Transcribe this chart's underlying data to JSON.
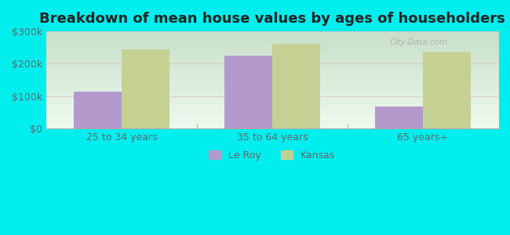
{
  "title": "Breakdown of mean house values by ages of householders",
  "categories": [
    "25 to 34 years",
    "35 to 64 years",
    "65 years+"
  ],
  "leroy_values": [
    113000,
    225000,
    68000
  ],
  "kansas_values": [
    245000,
    262000,
    237000
  ],
  "leroy_color": "#b399cc",
  "kansas_color": "#c5d193",
  "background_color": "#00eeee",
  "plot_bg_top": "#c8e8c8",
  "plot_bg_bottom": "#eefaee",
  "ylim": [
    0,
    300000
  ],
  "yticks": [
    0,
    100000,
    200000,
    300000
  ],
  "ytick_labels": [
    "$0",
    "$100k",
    "$200k",
    "$300k"
  ],
  "legend_leroy": "Le Roy",
  "legend_kansas": "Kansas",
  "bar_width": 0.32,
  "title_fontsize": 13,
  "tick_fontsize": 9,
  "legend_fontsize": 9,
  "watermark": "City-Data.com",
  "separator_color": "#aaaaaa",
  "tick_color": "#666666"
}
